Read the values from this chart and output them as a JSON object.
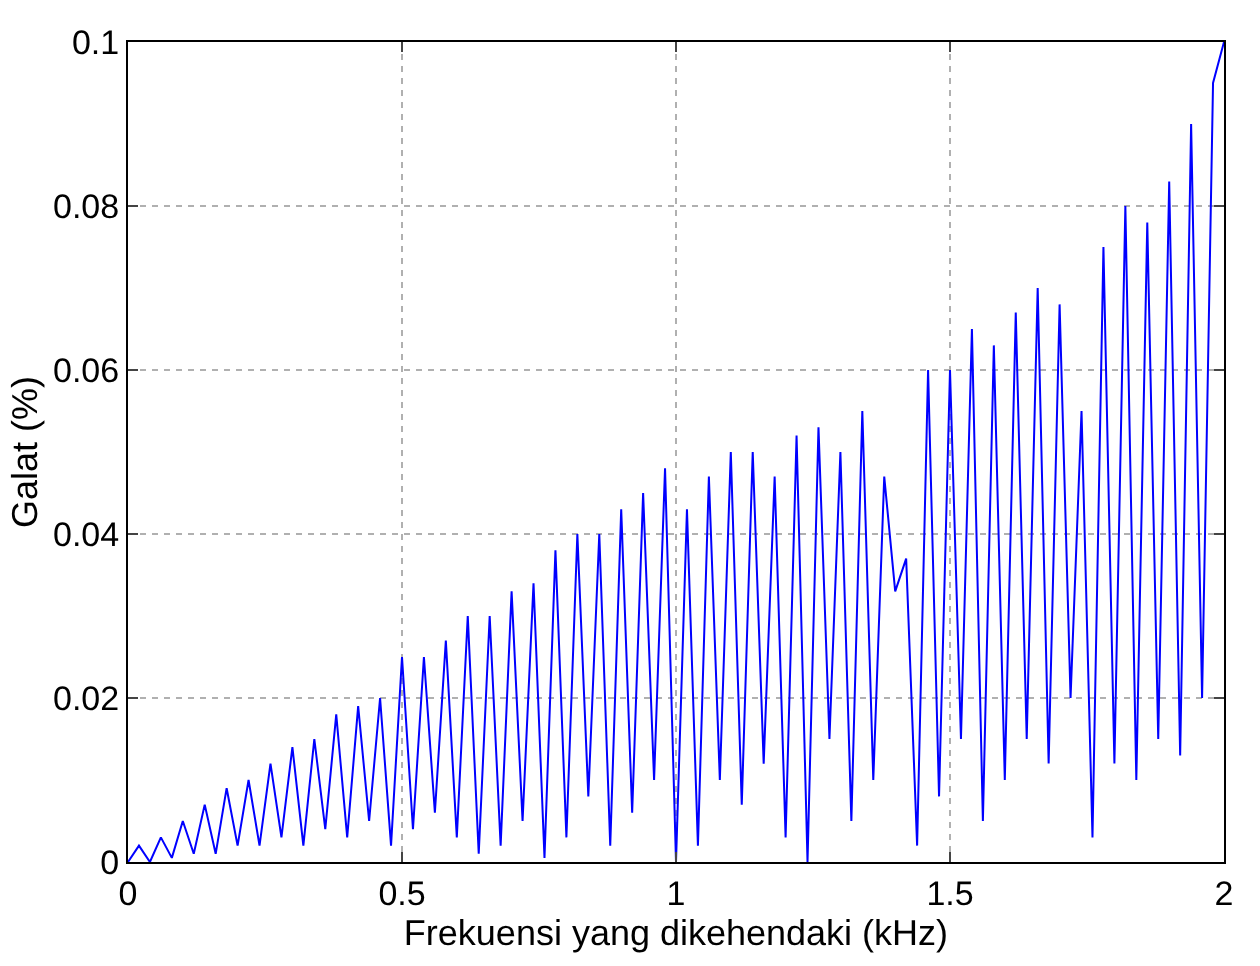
{
  "chart_data": {
    "type": "line",
    "xlabel": "Frekuensi yang dikehendaki (kHz)",
    "ylabel": "Galat (%)",
    "x": [
      0,
      0.02,
      0.04,
      0.06,
      0.08,
      0.1,
      0.12,
      0.14,
      0.16,
      0.18,
      0.2,
      0.22,
      0.24,
      0.26,
      0.28,
      0.3,
      0.32,
      0.34,
      0.36,
      0.38,
      0.4,
      0.42,
      0.44,
      0.46,
      0.48,
      0.5,
      0.52,
      0.54,
      0.56,
      0.58,
      0.6,
      0.62,
      0.64,
      0.66,
      0.68,
      0.7,
      0.72,
      0.74,
      0.76,
      0.78,
      0.8,
      0.82,
      0.84,
      0.86,
      0.88,
      0.9,
      0.92,
      0.94,
      0.96,
      0.98,
      1.0,
      1.02,
      1.04,
      1.06,
      1.08,
      1.1,
      1.12,
      1.14,
      1.16,
      1.18,
      1.2,
      1.22,
      1.24,
      1.26,
      1.28,
      1.3,
      1.32,
      1.34,
      1.36,
      1.38,
      1.4,
      1.42,
      1.44,
      1.46,
      1.48,
      1.5,
      1.52,
      1.54,
      1.56,
      1.58,
      1.6,
      1.62,
      1.64,
      1.66,
      1.68,
      1.7,
      1.72,
      1.74,
      1.76,
      1.78,
      1.8,
      1.82,
      1.84,
      1.86,
      1.88,
      1.9,
      1.92,
      1.94,
      1.96,
      1.98,
      2.0
    ],
    "series": [
      {
        "color": "#0000ff",
        "values": [
          0,
          0.002,
          0,
          0.003,
          0.0005,
          0.005,
          0.001,
          0.007,
          0.001,
          0.009,
          0.002,
          0.01,
          0.002,
          0.012,
          0.003,
          0.014,
          0.002,
          0.015,
          0.004,
          0.018,
          0.003,
          0.019,
          0.005,
          0.02,
          0.002,
          0.025,
          0.004,
          0.025,
          0.006,
          0.027,
          0.003,
          0.03,
          0.001,
          0.03,
          0.002,
          0.033,
          0.005,
          0.034,
          0.0005,
          0.038,
          0.003,
          0.04,
          0.008,
          0.04,
          0.002,
          0.043,
          0.006,
          0.045,
          0.01,
          0.048,
          0,
          0.043,
          0.002,
          0.047,
          0.01,
          0.05,
          0.007,
          0.05,
          0.012,
          0.047,
          0.003,
          0.052,
          0,
          0.053,
          0.015,
          0.05,
          0.005,
          0.055,
          0.01,
          0.047,
          0.033,
          0.037,
          0.002,
          0.06,
          0.008,
          0.06,
          0.015,
          0.065,
          0.005,
          0.063,
          0.01,
          0.067,
          0.015,
          0.07,
          0.012,
          0.068,
          0.02,
          0.055,
          0.003,
          0.075,
          0.012,
          0.08,
          0.01,
          0.078,
          0.015,
          0.083,
          0.013,
          0.09,
          0.02,
          0.095,
          0.1
        ]
      }
    ],
    "xlim": [
      0,
      2
    ],
    "xticks": [
      0,
      0.5,
      1,
      1.5,
      2
    ],
    "ylim": [
      0,
      0.1
    ],
    "yticks": [
      0,
      0.02,
      0.04,
      0.06,
      0.08,
      0.1
    ],
    "grid": true,
    "line_style": "solid"
  }
}
